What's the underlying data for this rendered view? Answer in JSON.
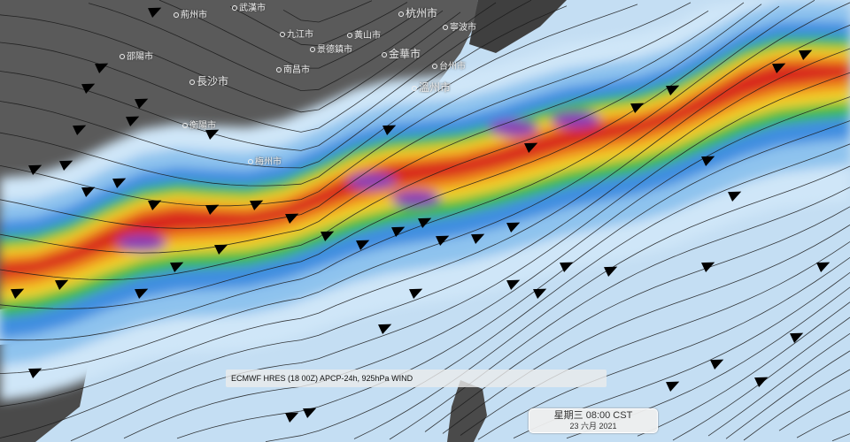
{
  "map": {
    "title": "ECMWF HRES (18 00Z) APCP-24h, 925hPa WIND",
    "valid_time": "星期三 08:00 CST",
    "valid_date": "23 六月 2021",
    "cities": [
      {
        "name": "武漢市"
      },
      {
        "name": "荊州市"
      },
      {
        "name": "九江市"
      },
      {
        "name": "黃山市"
      },
      {
        "name": "景德鎮市"
      },
      {
        "name": "南昌市"
      },
      {
        "name": "長沙市"
      },
      {
        "name": "衡陽市"
      },
      {
        "name": "杭州市"
      },
      {
        "name": "寧波市"
      },
      {
        "name": "金華市"
      },
      {
        "name": "台州市"
      },
      {
        "name": "溫州市"
      },
      {
        "name": "邵陽市"
      },
      {
        "name": "梅州市"
      }
    ],
    "precip_colors": [
      "#cfe6f8",
      "#8ec3ee",
      "#3f8ee0",
      "#3dbb45",
      "#f2d22a",
      "#f0891c",
      "#d8261f",
      "#8b3fb5"
    ],
    "land_color": "#5a5a5a",
    "ocean_color": "#c4def3"
  }
}
